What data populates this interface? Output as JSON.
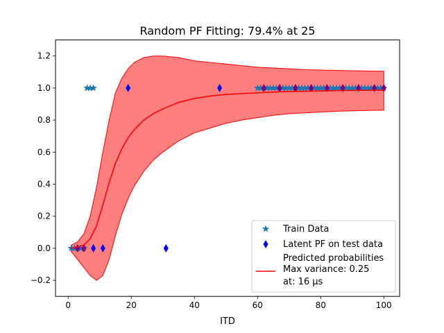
{
  "chart_data": {
    "type": "scatter",
    "title": "Random PF Fitting: 79.4% at 25",
    "xlabel": "ITD",
    "ylabel": "",
    "xlim": [
      -4,
      105
    ],
    "ylim": [
      -0.3,
      1.3
    ],
    "xticks": [
      0,
      20,
      40,
      60,
      80,
      100
    ],
    "xtick_labels": [
      "0",
      "20",
      "40",
      "60",
      "80",
      "100"
    ],
    "yticks": [
      -0.2,
      0.0,
      0.2,
      0.4,
      0.6,
      0.8,
      1.0,
      1.2
    ],
    "ytick_labels": [
      "−0.2",
      "0.0",
      "0.2",
      "0.4",
      "0.6",
      "0.8",
      "1.0",
      "1.2"
    ],
    "grid": false,
    "legend_position": "lower-right",
    "colors": {
      "train": "#1f77b4",
      "latent": "#0000ff",
      "overlap": "#800080",
      "curve": "#ff0000",
      "band": "#ff0000"
    },
    "legend": [
      {
        "label": "Train Data",
        "marker": "star"
      },
      {
        "label": "Latent PF on test data",
        "marker": "diamond"
      },
      {
        "label": "Predicted probabilities",
        "marker": "line"
      },
      {
        "label": "Max variance: 0.25",
        "marker": "none"
      },
      {
        "label": "at: 16 μs",
        "marker": "none"
      }
    ],
    "series": [
      {
        "name": "Train Data",
        "marker": "star",
        "points": [
          [
            1,
            0
          ],
          [
            2,
            0
          ],
          [
            3,
            0
          ],
          [
            4,
            0
          ],
          [
            5,
            0
          ],
          [
            6,
            1
          ],
          [
            7,
            1
          ],
          [
            8,
            1
          ],
          [
            60,
            1
          ],
          [
            61,
            1
          ],
          [
            62,
            1
          ],
          [
            63,
            1
          ],
          [
            64,
            1
          ],
          [
            65,
            1
          ],
          [
            66,
            1
          ],
          [
            67,
            1
          ],
          [
            68,
            1
          ],
          [
            69,
            1
          ],
          [
            70,
            1
          ],
          [
            71,
            1
          ],
          [
            72,
            1
          ],
          [
            73,
            1
          ],
          [
            74,
            1
          ],
          [
            75,
            1
          ],
          [
            76,
            1
          ],
          [
            77,
            1
          ],
          [
            78,
            1
          ],
          [
            79,
            1
          ],
          [
            80,
            1
          ],
          [
            81,
            1
          ],
          [
            82,
            1
          ],
          [
            83,
            1
          ],
          [
            84,
            1
          ],
          [
            85,
            1
          ],
          [
            86,
            1
          ],
          [
            87,
            1
          ],
          [
            88,
            1
          ],
          [
            89,
            1
          ],
          [
            90,
            1
          ],
          [
            91,
            1
          ],
          [
            92,
            1
          ],
          [
            93,
            1
          ],
          [
            94,
            1
          ],
          [
            95,
            1
          ],
          [
            96,
            1
          ],
          [
            97,
            1
          ],
          [
            98,
            1
          ],
          [
            99,
            1
          ],
          [
            100,
            1
          ]
        ]
      },
      {
        "name": "Latent PF on test data",
        "marker": "diamond",
        "points": [
          [
            3,
            0
          ],
          [
            5,
            0
          ],
          [
            8,
            0
          ],
          [
            11,
            0
          ],
          [
            19,
            1
          ],
          [
            31,
            0
          ],
          [
            48,
            1
          ],
          [
            62,
            1
          ],
          [
            67,
            1
          ],
          [
            72,
            1
          ],
          [
            77,
            1
          ],
          [
            82,
            1
          ],
          [
            87,
            1
          ],
          [
            92,
            1
          ],
          [
            97,
            1
          ],
          [
            100,
            1
          ]
        ]
      },
      {
        "name": "Predicted probabilities",
        "marker": "line",
        "x": [
          1,
          3,
          5,
          7,
          9,
          11,
          13,
          15,
          17,
          19,
          21,
          24,
          27,
          30,
          35,
          40,
          45,
          50,
          55,
          60,
          65,
          70,
          75,
          80,
          85,
          90,
          95,
          100
        ],
        "mean": [
          0.0,
          0.01,
          0.02,
          0.06,
          0.14,
          0.27,
          0.41,
          0.53,
          0.62,
          0.69,
          0.74,
          0.8,
          0.84,
          0.87,
          0.91,
          0.935,
          0.95,
          0.96,
          0.965,
          0.97,
          0.975,
          0.978,
          0.98,
          0.982,
          0.984,
          0.985,
          0.986,
          0.987
        ],
        "lower": [
          -0.02,
          -0.07,
          -0.12,
          -0.17,
          -0.2,
          -0.17,
          -0.07,
          0.08,
          0.21,
          0.31,
          0.39,
          0.48,
          0.55,
          0.6,
          0.67,
          0.72,
          0.75,
          0.78,
          0.8,
          0.815,
          0.83,
          0.84,
          0.845,
          0.85,
          0.855,
          0.858,
          0.86,
          0.862
        ],
        "upper": [
          0.02,
          0.04,
          0.09,
          0.2,
          0.38,
          0.6,
          0.8,
          0.97,
          1.06,
          1.12,
          1.16,
          1.19,
          1.2,
          1.2,
          1.19,
          1.17,
          1.16,
          1.15,
          1.14,
          1.13,
          1.125,
          1.12,
          1.115,
          1.112,
          1.11,
          1.108,
          1.106,
          1.105
        ]
      }
    ]
  }
}
